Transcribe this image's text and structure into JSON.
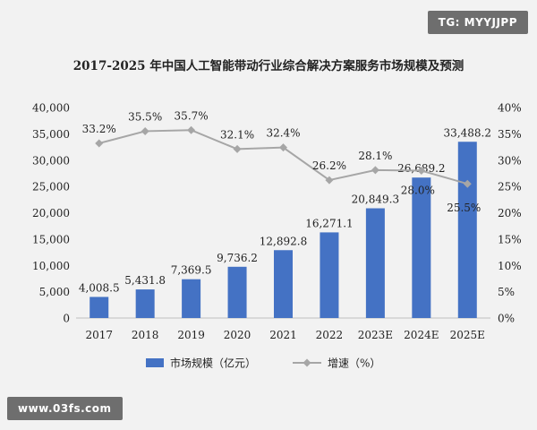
{
  "watermarks": {
    "top": "TG: MYYJJPP",
    "bottom": "www.03fs.com"
  },
  "colors": {
    "background": "#f2f2f2",
    "bar": "#4472c4",
    "line": "#a6a6a6",
    "marker": "#a6a6a6",
    "text": "#222222"
  },
  "chart_data": {
    "type": "bar",
    "title": "2017-2025 年中国人工智能带动行业综合解决方案服务市场规模及预测",
    "categories": [
      "2017",
      "2018",
      "2019",
      "2020",
      "2021",
      "2022",
      "2023E",
      "2024E",
      "2025E"
    ],
    "series": [
      {
        "name": "市场规模（亿元）",
        "type": "bar",
        "axis": "left",
        "values": [
          4008.5,
          5431.8,
          7369.5,
          9736.2,
          12892.8,
          16271.1,
          20849.3,
          26689.2,
          33488.2
        ],
        "labels": [
          "4,008.5",
          "5,431.8",
          "7,369.5",
          "9,736.2",
          "12,892.8",
          "16,271.1",
          "20,849.3",
          "26,689.2",
          "33,488.2"
        ]
      },
      {
        "name": "增速（%）",
        "type": "line",
        "axis": "right",
        "values": [
          33.2,
          35.5,
          35.7,
          32.1,
          32.4,
          26.2,
          28.1,
          28.0,
          25.5
        ],
        "labels": [
          "33.2%",
          "35.5%",
          "35.7%",
          "32.1%",
          "32.4%",
          "26.2%",
          "28.1%",
          "28.0%",
          "25.5%"
        ]
      }
    ],
    "y_left": {
      "min": 0,
      "max": 40000,
      "ticks": [
        "0",
        "5,000",
        "10,000",
        "15,000",
        "20,000",
        "25,000",
        "30,000",
        "35,000",
        "40,000"
      ]
    },
    "y_right": {
      "min": 0,
      "max": 40,
      "ticks": [
        "0%",
        "5%",
        "10%",
        "15%",
        "20%",
        "25%",
        "30%",
        "35%",
        "40%"
      ]
    },
    "grid": false,
    "legend": "bottom"
  }
}
